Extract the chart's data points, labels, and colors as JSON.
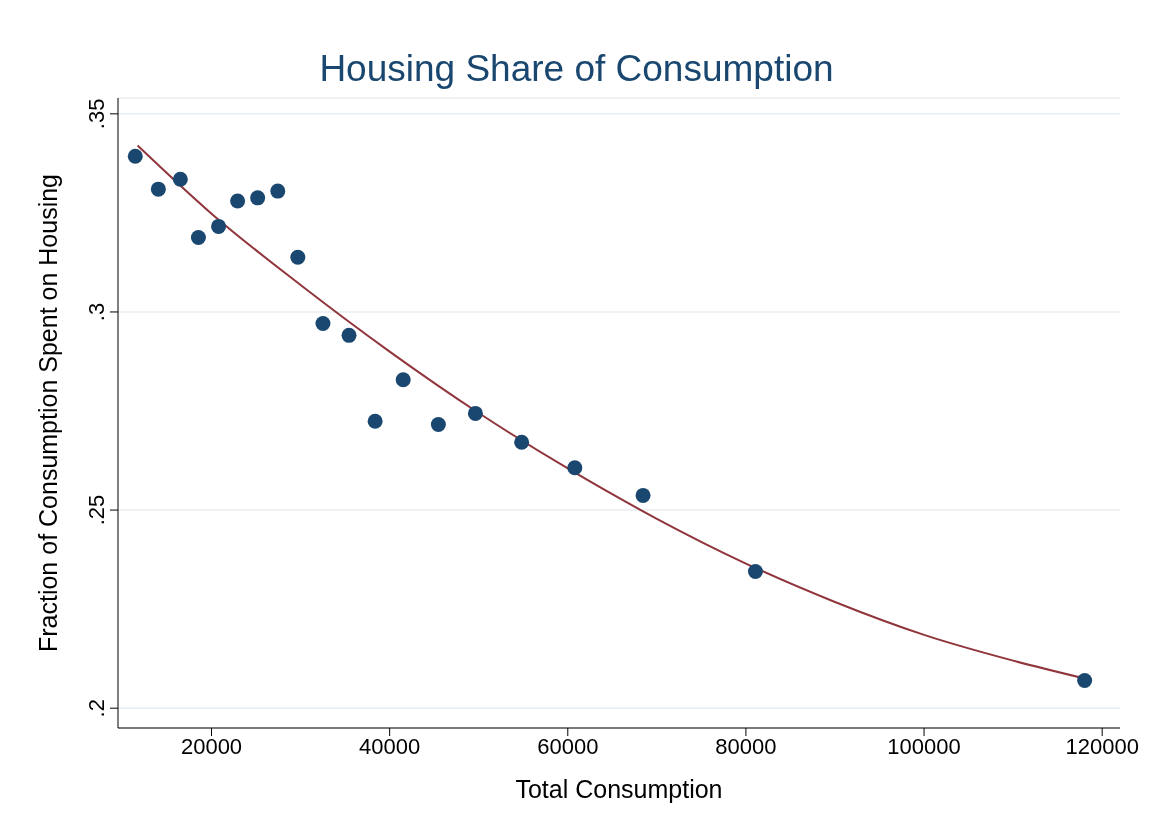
{
  "chart_data": {
    "type": "scatter",
    "title": "Housing Share of Consumption",
    "xlabel": "Total Consumption",
    "ylabel": "Fraction of Consumption Spent on Housing",
    "xlim": [
      9500,
      122000
    ],
    "xticks": [
      20000,
      40000,
      60000,
      80000,
      100000,
      120000
    ],
    "ylim": [
      0.195,
      0.354
    ],
    "yticks": [
      {
        "value": 0.2,
        "label": ".2"
      },
      {
        "value": 0.25,
        "label": ".25"
      },
      {
        "value": 0.3,
        "label": ".3"
      },
      {
        "value": 0.35,
        "label": ".35"
      }
    ],
    "grid": "y",
    "series": [
      {
        "type": "scatter",
        "marker": "circle",
        "color": "#1a476f",
        "x": [
          11440,
          14030,
          16500,
          18530,
          20790,
          22930,
          25180,
          27440,
          29690,
          32510,
          35440,
          38370,
          41520,
          45470,
          49630,
          54820,
          60790,
          68450,
          81070,
          118030
        ],
        "values": [
          0.3393,
          0.331,
          0.3335,
          0.3188,
          0.3216,
          0.328,
          0.3288,
          0.3305,
          0.3138,
          0.2971,
          0.2941,
          0.2724,
          0.2829,
          0.2716,
          0.2744,
          0.2671,
          0.2607,
          0.2537,
          0.2345,
          0.207
        ]
      },
      {
        "type": "line",
        "marker": "none",
        "line_style": "solid",
        "color": "#90353b",
        "x": [
          11700,
          20000,
          30000,
          40000,
          50000,
          60000,
          70000,
          80000,
          90000,
          100000,
          110000,
          118000
        ],
        "values": [
          0.342,
          0.3248,
          0.3068,
          0.29,
          0.2745,
          0.2605,
          0.2478,
          0.2365,
          0.2268,
          0.2185,
          0.212,
          0.2075
        ]
      }
    ]
  }
}
